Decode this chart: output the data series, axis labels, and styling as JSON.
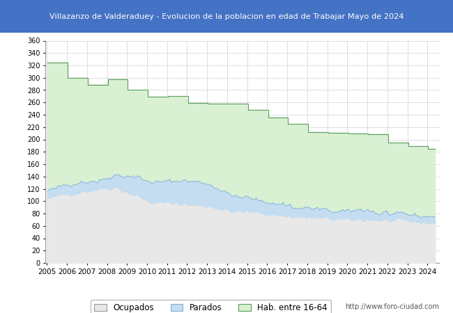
{
  "title": "Villazanzo de Valderaduey - Evolucion de la poblacion en edad de Trabajar Mayo de 2024",
  "title_bg": "#4472c4",
  "title_color": "#ffffff",
  "footer_text": "http://www.foro-ciudad.com",
  "legend_labels": [
    "Ocupados",
    "Parados",
    "Hab. entre 16-64"
  ],
  "ylim": [
    0,
    360
  ],
  "yticks": [
    0,
    20,
    40,
    60,
    80,
    100,
    120,
    140,
    160,
    180,
    200,
    220,
    240,
    260,
    280,
    300,
    320,
    340,
    360
  ],
  "color_hab": "#d9f0d3",
  "color_hab_line": "#5a9e5a",
  "color_parados": "#c5ddf0",
  "color_parados_line": "#7ab0d4",
  "color_ocupados": "#e8e8e8",
  "color_ocupados_line": "#888888",
  "grid_color": "#d0d0d0",
  "plot_bg": "#ffffff",
  "hab_annual": [
    325,
    300,
    289,
    298,
    280,
    269,
    270,
    259,
    258,
    258,
    248,
    236,
    225,
    212,
    211,
    210,
    209,
    195,
    189,
    185
  ],
  "hab_years": [
    2005,
    2006,
    2007,
    2008,
    2009,
    2010,
    2011,
    2012,
    2013,
    2014,
    2015,
    2016,
    2017,
    2018,
    2019,
    2020,
    2021,
    2022,
    2023,
    2024
  ]
}
